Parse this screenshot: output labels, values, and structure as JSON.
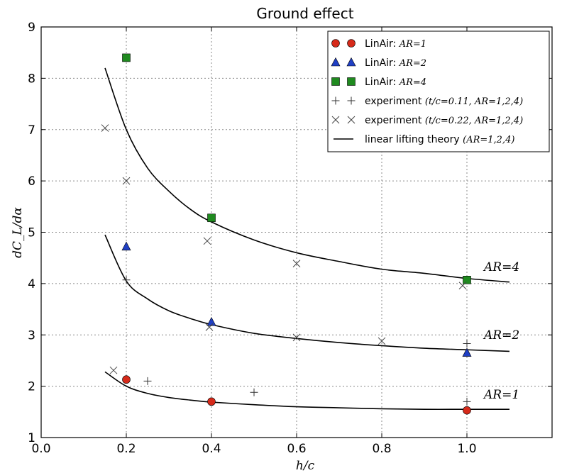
{
  "chart_data": {
    "type": "scatter",
    "title": "Ground effect",
    "xlabel": "h/c",
    "ylabel": "dC_L/dα",
    "xlim": [
      0.0,
      1.2
    ],
    "ylim": [
      1,
      9
    ],
    "xticks": [
      0.0,
      0.2,
      0.4,
      0.6,
      0.8,
      1.0
    ],
    "xtick_labels": [
      "0.0",
      "0.2",
      "0.4",
      "0.6",
      "0.8",
      "1.0"
    ],
    "yticks": [
      1,
      2,
      3,
      4,
      5,
      6,
      7,
      8,
      9
    ],
    "ytick_labels": [
      "1",
      "2",
      "3",
      "4",
      "5",
      "6",
      "7",
      "8",
      "9"
    ],
    "grid": true,
    "legend_position": "top-right",
    "series": [
      {
        "name": "LinAir: AR=1",
        "legend_prefix": "LinAir: ",
        "legend_math": "AR=1",
        "marker": "circle",
        "color": "#d62a1a",
        "x": [
          0.2,
          0.4,
          1.0
        ],
        "y": [
          2.13,
          1.7,
          1.53
        ]
      },
      {
        "name": "LinAir: AR=2",
        "legend_prefix": "LinAir: ",
        "legend_math": "AR=2",
        "marker": "triangle",
        "color": "#1f3fc4",
        "x": [
          0.2,
          0.4,
          1.0
        ],
        "y": [
          4.72,
          3.25,
          2.65
        ]
      },
      {
        "name": "LinAir: AR=4",
        "legend_prefix": "LinAir: ",
        "legend_math": "AR=4",
        "marker": "square",
        "color": "#1f8a1f",
        "x": [
          0.2,
          0.4,
          1.0
        ],
        "y": [
          8.4,
          5.28,
          4.07
        ]
      },
      {
        "name": "experiment (t/c=0.11, AR=1,2,4)",
        "legend_prefix": "experiment ",
        "legend_math": "(t/c=0.11,  AR=1,2,4)",
        "marker": "plus",
        "color": "#333333",
        "x": [
          0.2,
          0.25,
          0.5,
          1.0,
          1.0
        ],
        "y": [
          4.07,
          2.1,
          1.88,
          2.83,
          1.7
        ]
      },
      {
        "name": "experiment (t/c=0.22, AR=1,2,4)",
        "legend_prefix": "experiment ",
        "legend_math": "(t/c=0.22,  AR=1,2,4)",
        "marker": "cross",
        "color": "#444444",
        "x": [
          0.15,
          0.2,
          0.39,
          0.6,
          0.17,
          0.395,
          0.6,
          0.8,
          0.99
        ],
        "y": [
          7.03,
          6.0,
          4.83,
          4.39,
          2.31,
          3.15,
          2.95,
          2.88,
          3.96
        ]
      },
      {
        "name": "linear lifting theory (AR=1,2,4)",
        "legend_prefix": "linear lifting theory ",
        "legend_math": "(AR=1,2,4)",
        "marker": "line",
        "color": "#000000",
        "curves": [
          {
            "label": "AR=4",
            "x": [
              0.15,
              0.2,
              0.25,
              0.3,
              0.35,
              0.4,
              0.5,
              0.6,
              0.7,
              0.8,
              0.9,
              1.0,
              1.1
            ],
            "y": [
              8.2,
              7.0,
              6.25,
              5.8,
              5.45,
              5.2,
              4.85,
              4.6,
              4.43,
              4.28,
              4.2,
              4.1,
              4.03
            ]
          },
          {
            "label": "AR=2",
            "x": [
              0.15,
              0.2,
              0.25,
              0.3,
              0.35,
              0.4,
              0.5,
              0.6,
              0.7,
              0.8,
              0.9,
              1.0,
              1.1
            ],
            "y": [
              4.95,
              4.05,
              3.7,
              3.47,
              3.32,
              3.2,
              3.03,
              2.93,
              2.85,
              2.79,
              2.74,
              2.71,
              2.68
            ]
          },
          {
            "label": "AR=1",
            "x": [
              0.15,
              0.2,
              0.25,
              0.3,
              0.35,
              0.4,
              0.5,
              0.6,
              0.7,
              0.8,
              0.9,
              1.0,
              1.1
            ],
            "y": [
              2.28,
              2.0,
              1.86,
              1.78,
              1.73,
              1.69,
              1.64,
              1.6,
              1.58,
              1.56,
              1.55,
              1.55,
              1.55
            ]
          }
        ]
      }
    ],
    "annotations": [
      {
        "text": "AR=4",
        "x": 1.0,
        "y": 4.25
      },
      {
        "text": "AR=2",
        "x": 1.0,
        "y": 2.92
      },
      {
        "text": "AR=1",
        "x": 1.0,
        "y": 1.76
      }
    ]
  }
}
